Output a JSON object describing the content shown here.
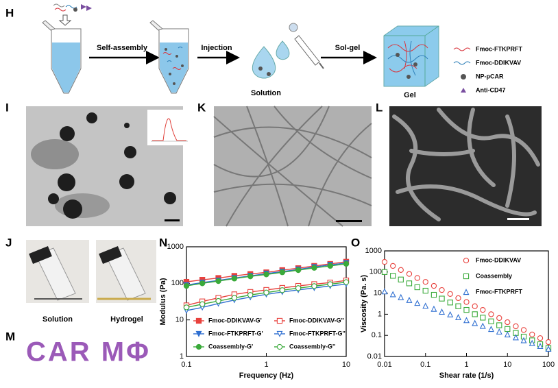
{
  "panel_labels": [
    "H",
    "I",
    "K",
    "L",
    "J",
    "N",
    "O",
    "M"
  ],
  "schematic": {
    "steps": [
      "Self-assembly",
      "Injection",
      "Sol-gel"
    ],
    "states": [
      "Solution",
      "Gel"
    ],
    "legend": [
      {
        "label": "Fmoc-FTKPRFT",
        "color": "#d9363e"
      },
      {
        "label": "Fmoc-DDIKVAV",
        "color": "#2e7fb8"
      },
      {
        "label": "NP-pCAR",
        "color": "#555555"
      },
      {
        "label": "Anti-CD47",
        "color": "#7a4fa0"
      }
    ]
  },
  "photos": {
    "captions": [
      "Solution",
      "Hydrogel"
    ]
  },
  "letters": "CAR MΦ",
  "chart_data": [
    {
      "type": "line",
      "xlabel": "Frequency (Hz)",
      "ylabel": "Modulus (Pa)",
      "xlog": true,
      "ylog": true,
      "xlim": [
        0.1,
        10
      ],
      "ylim": [
        1,
        1000
      ],
      "xticks": [
        0.1,
        1,
        10
      ],
      "yticks": [
        1,
        10,
        100,
        1000
      ],
      "legend": "lower center",
      "x": [
        0.1,
        0.158,
        0.251,
        0.398,
        0.631,
        1,
        1.585,
        2.512,
        3.981,
        6.31,
        10
      ],
      "series": [
        {
          "name": "Fmoc-DDIKVAV-G'",
          "color": "#e8413c",
          "marker": "square",
          "filled": true,
          "values": [
            110,
            125,
            140,
            160,
            180,
            200,
            230,
            260,
            300,
            340,
            390
          ]
        },
        {
          "name": "Fmoc-DDIKVAV-G''",
          "color": "#e8413c",
          "marker": "square",
          "filled": false,
          "values": [
            25,
            32,
            40,
            50,
            58,
            66,
            75,
            85,
            95,
            105,
            120
          ]
        },
        {
          "name": "Fmoc-FTKPRFT-G'",
          "color": "#2f6fd1",
          "marker": "triangle-down",
          "filled": true,
          "values": [
            90,
            105,
            120,
            140,
            160,
            185,
            210,
            240,
            280,
            320,
            360
          ]
        },
        {
          "name": "Fmoc-FTKPRFT-G''",
          "color": "#2f6fd1",
          "marker": "triangle-down",
          "filled": false,
          "values": [
            18,
            22,
            28,
            35,
            42,
            50,
            58,
            66,
            75,
            85,
            95
          ]
        },
        {
          "name": "Coassembly-G'",
          "color": "#3aaa3a",
          "marker": "circle",
          "filled": true,
          "values": [
            85,
            100,
            115,
            135,
            155,
            175,
            200,
            230,
            265,
            300,
            340
          ]
        },
        {
          "name": "Coassembly-G''",
          "color": "#3aaa3a",
          "marker": "circle",
          "filled": false,
          "values": [
            22,
            27,
            33,
            40,
            48,
            56,
            65,
            74,
            84,
            95,
            108
          ]
        }
      ]
    },
    {
      "type": "scatter",
      "xlabel": "Shear rate (1/s)",
      "ylabel": "Viscosity (Pa. s)",
      "xlog": true,
      "ylog": true,
      "xlim": [
        0.01,
        100
      ],
      "ylim": [
        0.01,
        1000
      ],
      "xticks": [
        0.01,
        0.1,
        1,
        10,
        100
      ],
      "yticks": [
        0.01,
        0.1,
        1,
        10,
        100,
        1000
      ],
      "legend": "upper right",
      "x": [
        0.01,
        0.016,
        0.025,
        0.04,
        0.063,
        0.1,
        0.16,
        0.25,
        0.4,
        0.63,
        1,
        1.6,
        2.5,
        4,
        6.3,
        10,
        16,
        25,
        40,
        63,
        100
      ],
      "series": [
        {
          "name": "Fmoc-DDIKVAV",
          "color": "#e8413c",
          "marker": "circle",
          "filled": false,
          "values": [
            300,
            194,
            125,
            81,
            52,
            34,
            22,
            14,
            9.1,
            5.8,
            3.8,
            2.4,
            1.6,
            1.0,
            0.66,
            0.42,
            0.27,
            0.18,
            0.11,
            0.074,
            0.048
          ]
        },
        {
          "name": "Coassembly",
          "color": "#3aaa3a",
          "marker": "square",
          "filled": false,
          "values": [
            100,
            66,
            44,
            29,
            19,
            13,
            8.3,
            5.5,
            3.6,
            2.4,
            1.6,
            1.0,
            0.69,
            0.46,
            0.3,
            0.2,
            0.13,
            0.087,
            0.058,
            0.038,
            0.025
          ]
        },
        {
          "name": "Fmoc-FTKPRFT",
          "color": "#2f6fd1",
          "marker": "triangle-up",
          "filled": false,
          "values": [
            12,
            8.8,
            6.4,
            4.7,
            3.4,
            2.5,
            1.8,
            1.3,
            0.98,
            0.72,
            0.52,
            0.38,
            0.28,
            0.2,
            0.15,
            0.11,
            0.08,
            0.058,
            0.043,
            0.031,
            0.023
          ]
        }
      ]
    }
  ]
}
